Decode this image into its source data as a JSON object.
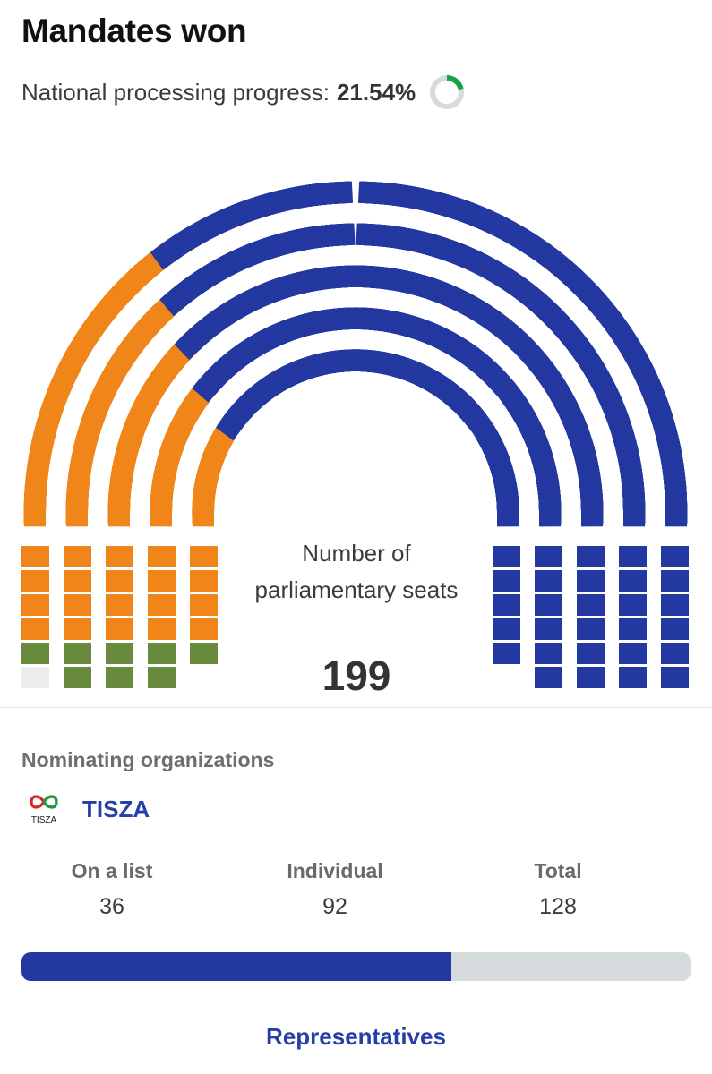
{
  "page": {
    "title": "Mandates won",
    "progress_label": "National processing progress:",
    "progress_value": "21.54%",
    "progress_fraction": 0.2154
  },
  "parliament": {
    "caption": "Number of parliamentary seats",
    "total_seats": "199"
  },
  "colors": {
    "orange": "#f0861a",
    "blue": "#2438a1",
    "green": "#678a3c",
    "grey": "#ececec",
    "donut_track": "#d6dbde",
    "donut_fill": "#1aa04a"
  },
  "nominating": {
    "label": "Nominating organizations",
    "party_name": "TISZA",
    "logo_text": "TISZA",
    "logo_icon": "tisza-infinity-logo"
  },
  "stats": {
    "on_list_label": "On a list",
    "on_list_value": "36",
    "individual_label": "Individual",
    "individual_value": "92",
    "total_label": "Total",
    "total_value": "128",
    "bar_fraction": 0.643
  },
  "links": {
    "representatives": "Representatives"
  }
}
